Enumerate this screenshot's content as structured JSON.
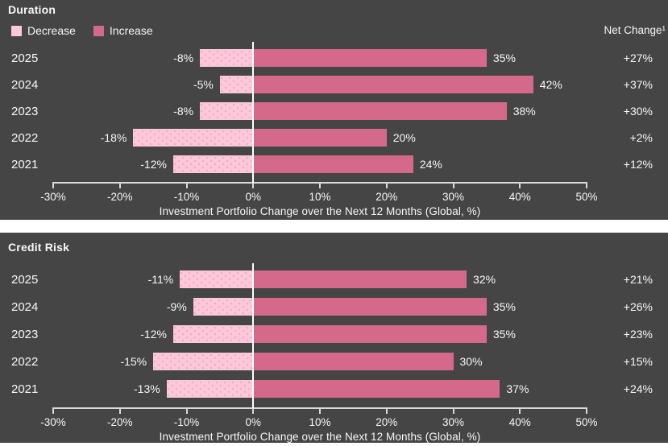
{
  "colors": {
    "panel_bg": "#454545",
    "decrease": "#FCC8DA",
    "decrease_dot": "#F2A8C6",
    "increase": "#D5698B",
    "text": "#F7F7F7",
    "axis_line": "#D9D9D9",
    "zero_line": "#FFFFFF"
  },
  "legend": {
    "decrease_label": "Decrease",
    "increase_label": "Increase"
  },
  "net_change_header": "Net Change¹",
  "axis": {
    "min": -30,
    "max": 50,
    "step": 10,
    "ticks": [
      "-30%",
      "-20%",
      "-10%",
      "0%",
      "10%",
      "20%",
      "30%",
      "40%",
      "50%"
    ],
    "caption": "Investment Portfolio Change over the Next 12 Months (Global, %)"
  },
  "chart_data": [
    {
      "type": "bar",
      "subtype": "diverging-horizontal",
      "title": "Duration",
      "categories": [
        "2025",
        "2024",
        "2023",
        "2022",
        "2021"
      ],
      "series": [
        {
          "name": "Decrease",
          "color": "#FCC8DA",
          "values": [
            -8,
            -5,
            -8,
            -18,
            -12
          ],
          "labels": [
            "-8%",
            "-5%",
            "-8%",
            "-18%",
            "-12%"
          ]
        },
        {
          "name": "Increase",
          "color": "#D5698B",
          "values": [
            35,
            42,
            38,
            20,
            24
          ],
          "labels": [
            "35%",
            "42%",
            "38%",
            "20%",
            "24%"
          ]
        }
      ],
      "net_change": [
        "+27%",
        "+37%",
        "+30%",
        "+2%",
        "+12%"
      ],
      "xlabel": "Investment Portfolio Change over the Next 12 Months (Global, %)",
      "xlim": [
        -30,
        50
      ],
      "legend_position": "top-left",
      "grid": false
    },
    {
      "type": "bar",
      "subtype": "diverging-horizontal",
      "title": "Credit Risk",
      "categories": [
        "2025",
        "2024",
        "2023",
        "2022",
        "2021"
      ],
      "series": [
        {
          "name": "Decrease",
          "color": "#FCC8DA",
          "values": [
            -11,
            -9,
            -12,
            -15,
            -13
          ],
          "labels": [
            "-11%",
            "-9%",
            "-12%",
            "-15%",
            "-13%"
          ]
        },
        {
          "name": "Increase",
          "color": "#D5698B",
          "values": [
            32,
            35,
            35,
            30,
            37
          ],
          "labels": [
            "32%",
            "35%",
            "35%",
            "30%",
            "37%"
          ]
        }
      ],
      "net_change": [
        "+21%",
        "+26%",
        "+23%",
        "+15%",
        "+24%"
      ],
      "xlabel": "Investment Portfolio Change over the Next 12 Months (Global, %)",
      "xlim": [
        -30,
        50
      ],
      "grid": false
    }
  ]
}
